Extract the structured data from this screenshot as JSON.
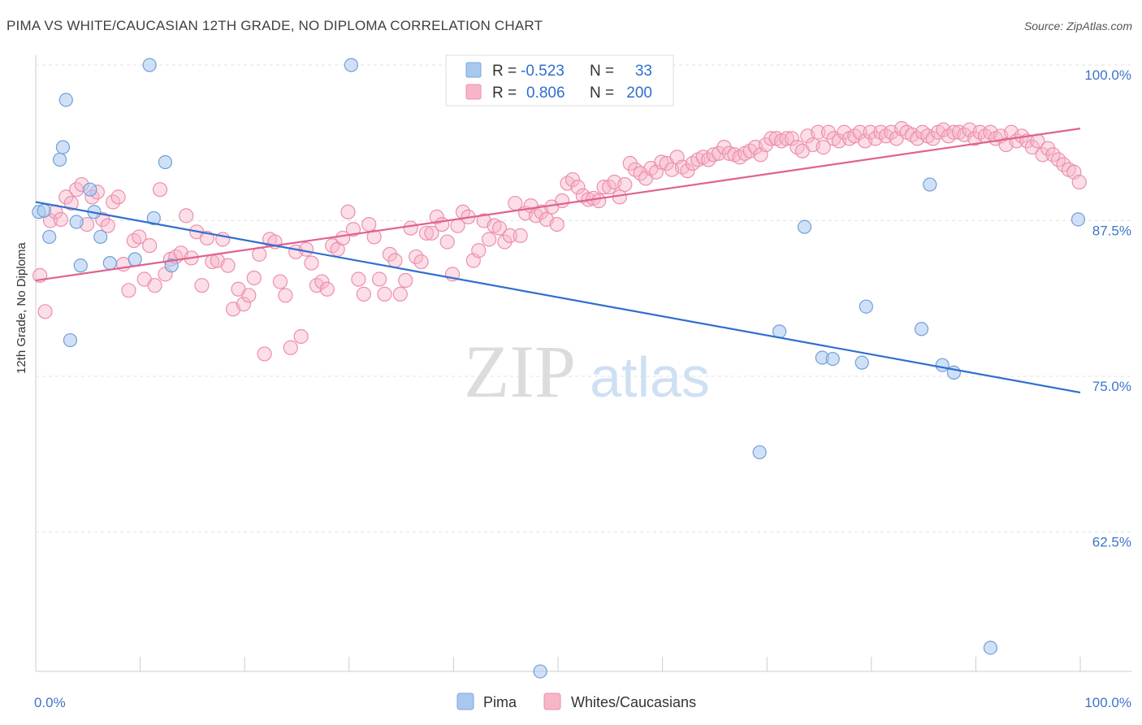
{
  "header": {
    "title": "PIMA VS WHITE/CAUCASIAN 12TH GRADE, NO DIPLOMA CORRELATION CHART",
    "source": "Source: ZipAtlas.com"
  },
  "watermark": {
    "zip": "ZIP",
    "atlas": "atlas"
  },
  "stats": [
    {
      "r_label": "R =",
      "r_value": "-0.523",
      "n_label": "N =",
      "n_value": "33",
      "color": "#a9c8f0"
    },
    {
      "r_label": "R =",
      "r_value": "0.806",
      "n_label": "N =",
      "n_value": "200",
      "color": "#f7b6c8"
    }
  ],
  "legend": [
    {
      "label": "Pima",
      "color": "#a9c8f0"
    },
    {
      "label": "Whites/Caucasians",
      "color": "#f7b6c8"
    }
  ],
  "chart_data": {
    "type": "scatter",
    "title": "PIMA VS WHITE/CAUCASIAN 12TH GRADE, NO DIPLOMA CORRELATION CHART",
    "xlabel": "",
    "ylabel": "12th Grade, No Diploma",
    "xlim": [
      0,
      100
    ],
    "ylim": [
      50.5,
      100.5
    ],
    "x_tick_labels": [
      "0.0%",
      "100.0%"
    ],
    "y_ticks": [
      62.5,
      75.0,
      87.5,
      100.0
    ],
    "y_tick_labels": [
      "62.5%",
      "75.0%",
      "87.5%",
      "100.0%"
    ],
    "grid": true,
    "legend_position": "bottom",
    "series": [
      {
        "name": "Pima",
        "color": "#a9c8f0",
        "line_color": "#2f6fce",
        "trend": {
          "x": [
            0,
            100
          ],
          "y": [
            89.0,
            73.7
          ]
        },
        "points": [
          [
            0.3,
            88.2
          ],
          [
            0.8,
            88.3
          ],
          [
            1.3,
            86.2
          ],
          [
            2.3,
            92.4
          ],
          [
            2.6,
            93.4
          ],
          [
            2.9,
            97.2
          ],
          [
            3.3,
            77.9
          ],
          [
            3.9,
            87.4
          ],
          [
            4.3,
            83.9
          ],
          [
            5.2,
            90.0
          ],
          [
            5.6,
            88.2
          ],
          [
            6.2,
            86.2
          ],
          [
            7.1,
            84.1
          ],
          [
            9.5,
            84.4
          ],
          [
            10.9,
            100.0
          ],
          [
            11.3,
            87.7
          ],
          [
            12.4,
            92.2
          ],
          [
            13.0,
            83.9
          ],
          [
            30.2,
            100.0
          ],
          [
            48.3,
            51.3
          ],
          [
            69.3,
            68.9
          ],
          [
            71.2,
            78.6
          ],
          [
            73.6,
            87.0
          ],
          [
            75.3,
            76.5
          ],
          [
            76.3,
            76.4
          ],
          [
            79.1,
            76.1
          ],
          [
            79.5,
            80.6
          ],
          [
            84.8,
            78.8
          ],
          [
            85.6,
            90.4
          ],
          [
            86.8,
            75.9
          ],
          [
            87.9,
            75.3
          ],
          [
            91.4,
            53.2
          ],
          [
            99.8,
            87.6
          ]
        ]
      },
      {
        "name": "Whites/Caucasians",
        "color": "#f7b6c8",
        "line_color": "#e0628f",
        "trend": {
          "x": [
            0,
            100
          ],
          "y": [
            82.7,
            94.9
          ]
        },
        "points": [
          [
            0.4,
            83.1
          ],
          [
            0.9,
            80.2
          ],
          [
            1.4,
            87.5
          ],
          [
            1.9,
            88.2
          ],
          [
            2.4,
            87.6
          ],
          [
            2.9,
            89.4
          ],
          [
            3.4,
            88.9
          ],
          [
            3.9,
            90.0
          ],
          [
            4.4,
            90.4
          ],
          [
            4.9,
            87.2
          ],
          [
            5.4,
            89.4
          ],
          [
            5.9,
            89.8
          ],
          [
            6.4,
            87.6
          ],
          [
            6.9,
            87.1
          ],
          [
            7.4,
            89.0
          ],
          [
            7.9,
            89.4
          ],
          [
            8.4,
            84.0
          ],
          [
            8.9,
            81.9
          ],
          [
            9.4,
            85.9
          ],
          [
            9.9,
            86.2
          ],
          [
            10.4,
            82.8
          ],
          [
            10.9,
            85.5
          ],
          [
            11.4,
            82.3
          ],
          [
            11.9,
            90.0
          ],
          [
            12.4,
            83.2
          ],
          [
            12.9,
            84.4
          ],
          [
            13.4,
            84.6
          ],
          [
            13.9,
            84.9
          ],
          [
            14.4,
            87.9
          ],
          [
            14.9,
            84.5
          ],
          [
            15.4,
            86.6
          ],
          [
            15.9,
            82.3
          ],
          [
            16.4,
            86.1
          ],
          [
            16.9,
            84.2
          ],
          [
            17.4,
            84.3
          ],
          [
            17.9,
            86.0
          ],
          [
            18.4,
            83.9
          ],
          [
            18.9,
            80.4
          ],
          [
            19.4,
            82.0
          ],
          [
            19.9,
            80.8
          ],
          [
            20.4,
            81.5
          ],
          [
            20.9,
            82.9
          ],
          [
            21.4,
            84.8
          ],
          [
            21.9,
            76.8
          ],
          [
            22.4,
            86.0
          ],
          [
            22.9,
            85.8
          ],
          [
            23.4,
            82.6
          ],
          [
            23.9,
            81.5
          ],
          [
            24.4,
            77.3
          ],
          [
            24.9,
            85.0
          ],
          [
            25.4,
            78.2
          ],
          [
            25.9,
            85.2
          ],
          [
            26.4,
            84.1
          ],
          [
            26.9,
            82.3
          ],
          [
            27.4,
            82.6
          ],
          [
            27.9,
            82.0
          ],
          [
            28.4,
            85.5
          ],
          [
            28.9,
            85.2
          ],
          [
            29.4,
            86.1
          ],
          [
            29.9,
            88.2
          ],
          [
            30.4,
            86.8
          ],
          [
            30.9,
            82.8
          ],
          [
            31.4,
            81.6
          ],
          [
            31.9,
            87.2
          ],
          [
            32.4,
            86.2
          ],
          [
            32.9,
            82.8
          ],
          [
            33.4,
            81.6
          ],
          [
            33.9,
            84.8
          ],
          [
            34.4,
            84.3
          ],
          [
            34.9,
            81.6
          ],
          [
            35.4,
            82.7
          ],
          [
            35.9,
            86.9
          ],
          [
            36.4,
            84.6
          ],
          [
            36.9,
            84.2
          ],
          [
            37.4,
            86.5
          ],
          [
            37.9,
            86.5
          ],
          [
            38.4,
            87.8
          ],
          [
            38.9,
            87.2
          ],
          [
            39.4,
            85.8
          ],
          [
            39.9,
            83.2
          ],
          [
            40.4,
            87.1
          ],
          [
            40.9,
            88.2
          ],
          [
            41.4,
            87.8
          ],
          [
            41.9,
            84.3
          ],
          [
            42.4,
            85.1
          ],
          [
            42.9,
            87.5
          ],
          [
            43.4,
            86.0
          ],
          [
            43.9,
            87.1
          ],
          [
            44.4,
            86.9
          ],
          [
            44.9,
            85.8
          ],
          [
            45.4,
            86.3
          ],
          [
            45.9,
            88.9
          ],
          [
            46.4,
            86.3
          ],
          [
            46.9,
            88.1
          ],
          [
            47.4,
            88.7
          ],
          [
            47.9,
            87.9
          ],
          [
            48.4,
            88.2
          ],
          [
            48.9,
            87.6
          ],
          [
            49.4,
            88.6
          ],
          [
            49.9,
            87.2
          ],
          [
            50.4,
            89.1
          ],
          [
            50.9,
            90.5
          ],
          [
            51.4,
            90.8
          ],
          [
            51.9,
            90.2
          ],
          [
            52.4,
            89.5
          ],
          [
            52.9,
            89.2
          ],
          [
            53.4,
            89.3
          ],
          [
            53.9,
            89.1
          ],
          [
            54.4,
            90.2
          ],
          [
            54.9,
            90.2
          ],
          [
            55.4,
            90.6
          ],
          [
            55.9,
            89.4
          ],
          [
            56.4,
            90.4
          ],
          [
            56.9,
            92.1
          ],
          [
            57.4,
            91.6
          ],
          [
            57.9,
            91.3
          ],
          [
            58.4,
            90.9
          ],
          [
            58.9,
            91.7
          ],
          [
            59.4,
            91.4
          ],
          [
            59.9,
            92.2
          ],
          [
            60.4,
            92.1
          ],
          [
            60.9,
            91.6
          ],
          [
            61.4,
            92.6
          ],
          [
            61.9,
            91.8
          ],
          [
            62.4,
            91.5
          ],
          [
            62.9,
            92.1
          ],
          [
            63.4,
            92.4
          ],
          [
            63.9,
            92.6
          ],
          [
            64.4,
            92.4
          ],
          [
            64.9,
            92.8
          ],
          [
            65.4,
            92.9
          ],
          [
            65.9,
            93.4
          ],
          [
            66.4,
            92.9
          ],
          [
            66.9,
            92.8
          ],
          [
            67.4,
            92.6
          ],
          [
            67.9,
            92.9
          ],
          [
            68.4,
            93.1
          ],
          [
            68.9,
            93.4
          ],
          [
            69.4,
            92.8
          ],
          [
            69.9,
            93.6
          ],
          [
            70.4,
            94.1
          ],
          [
            70.9,
            94.1
          ],
          [
            71.4,
            93.9
          ],
          [
            71.9,
            94.1
          ],
          [
            72.4,
            94.1
          ],
          [
            72.9,
            93.4
          ],
          [
            73.4,
            93.1
          ],
          [
            73.9,
            94.3
          ],
          [
            74.4,
            93.6
          ],
          [
            74.9,
            94.6
          ],
          [
            75.4,
            93.4
          ],
          [
            75.9,
            94.6
          ],
          [
            76.4,
            94.1
          ],
          [
            76.9,
            93.9
          ],
          [
            77.4,
            94.6
          ],
          [
            77.9,
            94.1
          ],
          [
            78.4,
            94.3
          ],
          [
            78.9,
            94.6
          ],
          [
            79.4,
            93.9
          ],
          [
            79.9,
            94.6
          ],
          [
            80.4,
            94.1
          ],
          [
            80.9,
            94.6
          ],
          [
            81.4,
            94.3
          ],
          [
            81.9,
            94.6
          ],
          [
            82.4,
            94.1
          ],
          [
            82.9,
            94.9
          ],
          [
            83.4,
            94.6
          ],
          [
            83.9,
            94.4
          ],
          [
            84.4,
            94.1
          ],
          [
            84.9,
            94.6
          ],
          [
            85.4,
            94.3
          ],
          [
            85.9,
            94.1
          ],
          [
            86.4,
            94.6
          ],
          [
            86.9,
            94.8
          ],
          [
            87.4,
            94.3
          ],
          [
            87.9,
            94.6
          ],
          [
            88.4,
            94.6
          ],
          [
            88.9,
            94.4
          ],
          [
            89.4,
            94.8
          ],
          [
            89.9,
            94.1
          ],
          [
            90.4,
            94.6
          ],
          [
            90.9,
            94.3
          ],
          [
            91.4,
            94.6
          ],
          [
            91.9,
            94.1
          ],
          [
            92.4,
            94.3
          ],
          [
            92.9,
            93.6
          ],
          [
            93.4,
            94.6
          ],
          [
            93.9,
            93.9
          ],
          [
            94.4,
            94.3
          ],
          [
            94.9,
            93.9
          ],
          [
            95.4,
            93.4
          ],
          [
            95.9,
            93.9
          ],
          [
            96.4,
            92.8
          ],
          [
            96.9,
            93.3
          ],
          [
            97.4,
            92.8
          ],
          [
            97.9,
            92.4
          ],
          [
            98.4,
            92.0
          ],
          [
            98.9,
            91.6
          ],
          [
            99.4,
            91.4
          ],
          [
            99.9,
            90.6
          ]
        ]
      }
    ]
  }
}
